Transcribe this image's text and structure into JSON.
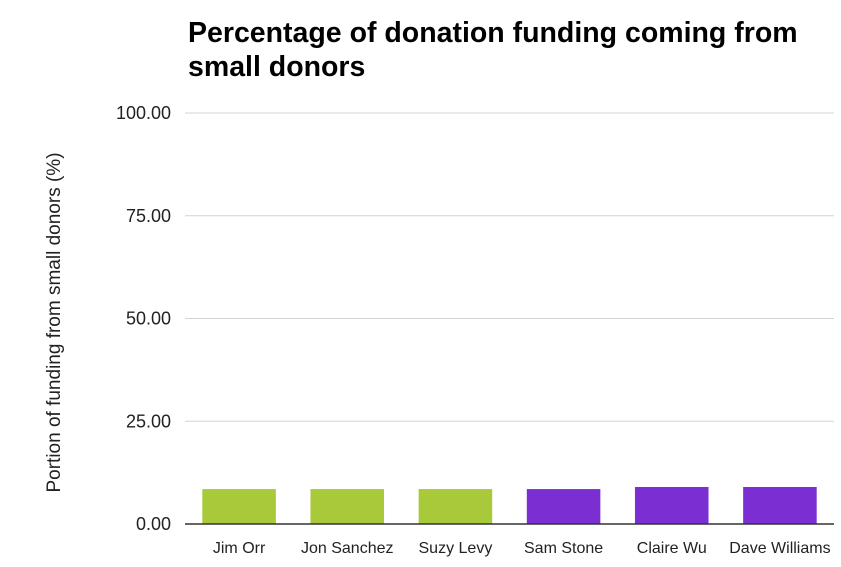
{
  "chart_data": {
    "type": "bar",
    "title": "Percentage of donation funding coming from small donors",
    "xlabel": "",
    "ylabel": "Portion of funding from small donors (%)",
    "categories": [
      "Jim Orr",
      "Jon Sanchez",
      "Suzy Levy",
      "Sam Stone",
      "Claire Wu",
      "Dave Williams"
    ],
    "values": [
      8.5,
      8.5,
      8.5,
      8.5,
      9.0,
      9.0
    ],
    "bar_colors": [
      "#a8c93a",
      "#a8c93a",
      "#a8c93a",
      "#7b2fd3",
      "#7b2fd3",
      "#7b2fd3"
    ],
    "ylim": [
      0,
      100
    ],
    "yticks": [
      "0.00",
      "25.00",
      "50.00",
      "75.00",
      "100.00"
    ],
    "ytick_values": [
      0,
      25,
      50,
      75,
      100
    ],
    "grid": true,
    "legend": "none"
  },
  "colors": {
    "gridline": "#d3d3d3",
    "axis": "#333333",
    "text": "#222222"
  }
}
